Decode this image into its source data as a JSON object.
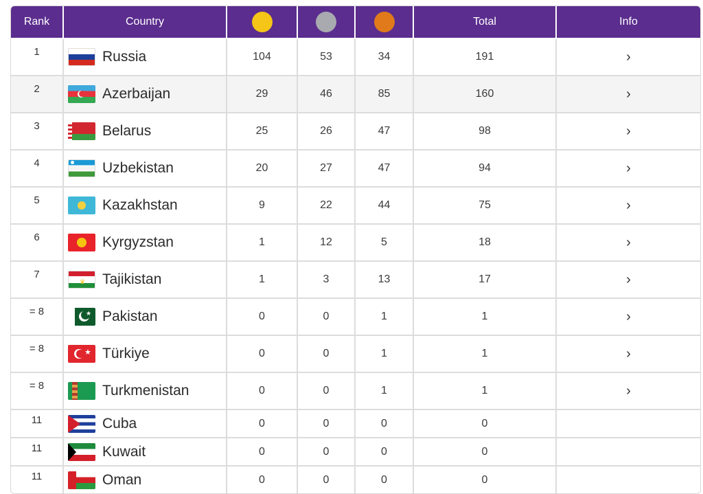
{
  "header": {
    "rank": "Rank",
    "country": "Country",
    "total": "Total",
    "info": "Info",
    "medal_colors": {
      "gold": "#f5c518",
      "silver": "#a9aab0",
      "bronze": "#e07a1a"
    }
  },
  "rows": [
    {
      "rank": "1",
      "country": "Russia",
      "gold": "104",
      "silver": "53",
      "bronze": "34",
      "total": "191",
      "info": "›",
      "flag": "russia-flag"
    },
    {
      "rank": "2",
      "country": "Azerbaijan",
      "gold": "29",
      "silver": "46",
      "bronze": "85",
      "total": "160",
      "info": "›",
      "flag": "azerbaijan-flag"
    },
    {
      "rank": "3",
      "country": "Belarus",
      "gold": "25",
      "silver": "26",
      "bronze": "47",
      "total": "98",
      "info": "›",
      "flag": "belarus-flag"
    },
    {
      "rank": "4",
      "country": "Uzbekistan",
      "gold": "20",
      "silver": "27",
      "bronze": "47",
      "total": "94",
      "info": "›",
      "flag": "uzbekistan-flag"
    },
    {
      "rank": "5",
      "country": "Kazakhstan",
      "gold": "9",
      "silver": "22",
      "bronze": "44",
      "total": "75",
      "info": "›",
      "flag": "kazakhstan-flag"
    },
    {
      "rank": "6",
      "country": "Kyrgyzstan",
      "gold": "1",
      "silver": "12",
      "bronze": "5",
      "total": "18",
      "info": "›",
      "flag": "kyrgyzstan-flag"
    },
    {
      "rank": "7",
      "country": "Tajikistan",
      "gold": "1",
      "silver": "3",
      "bronze": "13",
      "total": "17",
      "info": "›",
      "flag": "tajikistan-flag"
    },
    {
      "rank": "= 8",
      "country": "Pakistan",
      "gold": "0",
      "silver": "0",
      "bronze": "1",
      "total": "1",
      "info": "›",
      "flag": "pakistan-flag"
    },
    {
      "rank": "= 8",
      "country": "Türkiye",
      "gold": "0",
      "silver": "0",
      "bronze": "1",
      "total": "1",
      "info": "›",
      "flag": "turkiye-flag"
    },
    {
      "rank": "= 8",
      "country": "Turkmenistan",
      "gold": "0",
      "silver": "0",
      "bronze": "1",
      "total": "1",
      "info": "›",
      "flag": "turkmenistan-flag"
    },
    {
      "rank": "11",
      "country": "Cuba",
      "gold": "0",
      "silver": "0",
      "bronze": "0",
      "total": "0",
      "info": "",
      "flag": "cuba-flag"
    },
    {
      "rank": "11",
      "country": "Kuwait",
      "gold": "0",
      "silver": "0",
      "bronze": "0",
      "total": "0",
      "info": "",
      "flag": "kuwait-flag"
    },
    {
      "rank": "11",
      "country": "Oman",
      "gold": "0",
      "silver": "0",
      "bronze": "0",
      "total": "0",
      "info": "",
      "flag": "oman-flag"
    }
  ]
}
